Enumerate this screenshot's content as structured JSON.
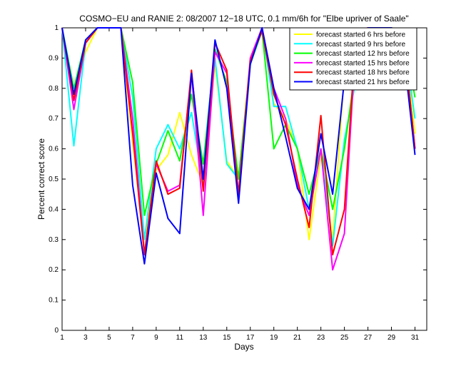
{
  "chart_data": {
    "type": "line",
    "title": "COSMO−EU and RANIE 2: 08/2007 12−18 UTC, 0.1 mm/6h for \"Elbe upriver of Saale\"",
    "xlabel": "Days",
    "ylabel": "Percent correct score",
    "xlim": [
      1,
      32
    ],
    "ylim": [
      0,
      1
    ],
    "xticks": [
      1,
      3,
      5,
      7,
      9,
      11,
      13,
      15,
      17,
      19,
      21,
      23,
      25,
      27,
      29,
      31
    ],
    "yticks": [
      0,
      0.1,
      0.2,
      0.3,
      0.4,
      0.5,
      0.6,
      0.7,
      0.8,
      0.9,
      1
    ],
    "ytick_labels": [
      "0",
      "0.1",
      "0.2",
      "0.3",
      "0.4",
      "0.5",
      "0.6",
      "0.7",
      "0.8",
      "0.9",
      "1"
    ],
    "grid": false,
    "legend_position": "top-right",
    "x": [
      1,
      2,
      3,
      4,
      5,
      6,
      7,
      8,
      9,
      10,
      11,
      12,
      13,
      14,
      15,
      16,
      17,
      18,
      19,
      20,
      21,
      22,
      23,
      24,
      25,
      26,
      27,
      28,
      29,
      30,
      31
    ],
    "series": [
      {
        "name": "forecast started 6 hrs before",
        "color": "#ffff00",
        "values": [
          1.0,
          0.79,
          0.92,
          1.0,
          1.0,
          1.0,
          0.62,
          0.3,
          0.53,
          0.58,
          0.72,
          0.58,
          0.48,
          0.88,
          0.56,
          0.5,
          0.9,
          1.0,
          0.75,
          0.7,
          0.6,
          0.3,
          0.58,
          0.3,
          0.85,
          0.93,
          1.0,
          1.0,
          1.0,
          0.98,
          0.65
        ]
      },
      {
        "name": "forecast started 9 hrs before",
        "color": "#00ffff",
        "values": [
          1.0,
          0.61,
          0.95,
          1.0,
          1.0,
          1.0,
          0.77,
          0.3,
          0.6,
          0.68,
          0.6,
          0.72,
          0.48,
          0.9,
          0.55,
          0.5,
          0.88,
          1.0,
          0.74,
          0.74,
          0.6,
          0.4,
          0.6,
          0.28,
          0.63,
          0.83,
          0.98,
          1.0,
          1.0,
          0.98,
          0.7
        ]
      },
      {
        "name": "forecast started 12 hrs before",
        "color": "#00ff00",
        "values": [
          1.0,
          0.8,
          0.96,
          1.0,
          1.0,
          1.0,
          0.82,
          0.38,
          0.55,
          0.66,
          0.56,
          0.78,
          0.55,
          0.93,
          0.82,
          0.5,
          0.88,
          0.99,
          0.6,
          0.68,
          0.6,
          0.45,
          0.6,
          0.4,
          0.6,
          0.88,
          1.0,
          1.0,
          1.0,
          0.99,
          0.77
        ]
      },
      {
        "name": "forecast started 15 hrs before",
        "color": "#ff00ff",
        "values": [
          1.0,
          0.73,
          0.95,
          1.0,
          1.0,
          1.0,
          0.7,
          0.25,
          0.55,
          0.46,
          0.48,
          0.85,
          0.38,
          0.92,
          0.85,
          0.45,
          0.9,
          1.0,
          0.8,
          0.7,
          0.48,
          0.38,
          0.6,
          0.2,
          0.32,
          0.98,
          1.0,
          1.0,
          1.0,
          0.98,
          0.6
        ]
      },
      {
        "name": "forecast started 18 hrs before",
        "color": "#ff0000",
        "values": [
          1.0,
          0.76,
          0.95,
          1.0,
          1.0,
          1.0,
          0.65,
          0.25,
          0.56,
          0.45,
          0.47,
          0.86,
          0.46,
          0.95,
          0.86,
          0.45,
          0.89,
          0.99,
          0.78,
          0.68,
          0.5,
          0.34,
          0.71,
          0.25,
          0.4,
          0.99,
          1.0,
          1.0,
          1.0,
          0.98,
          0.6
        ]
      },
      {
        "name": "forecast started 21 hrs before",
        "color": "#0000ff",
        "values": [
          1.0,
          0.78,
          0.96,
          1.0,
          1.0,
          1.0,
          0.48,
          0.22,
          0.52,
          0.37,
          0.32,
          0.85,
          0.5,
          0.96,
          0.8,
          0.42,
          0.88,
          1.0,
          0.8,
          0.64,
          0.47,
          0.4,
          0.65,
          0.45,
          0.83,
          0.92,
          1.0,
          1.0,
          1.0,
          0.93,
          0.58
        ]
      }
    ]
  }
}
